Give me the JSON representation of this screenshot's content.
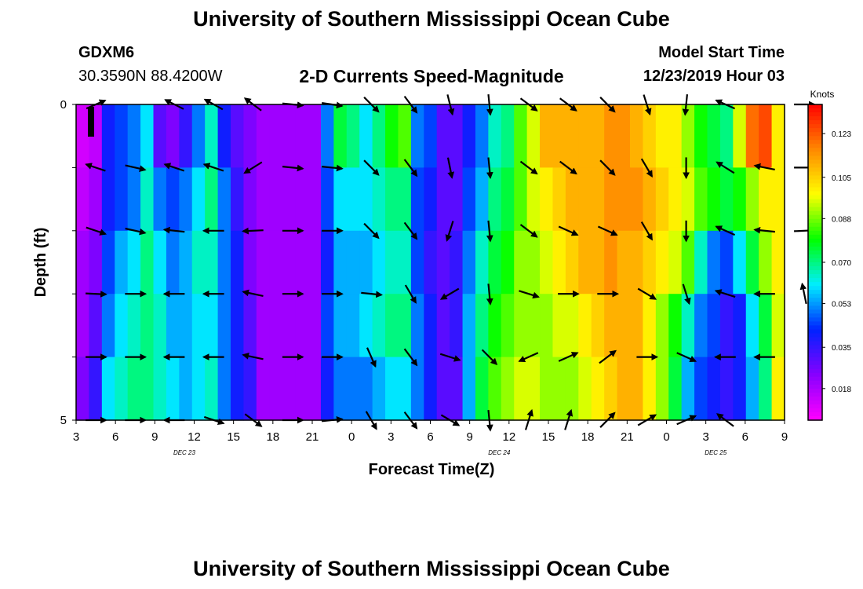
{
  "page": {
    "title_top": "University of Southern Mississippi Ocean Cube",
    "title_bottom": "University of Southern Mississippi Ocean Cube",
    "station": "GDXM6",
    "location": "30.3590N 88.4200W",
    "plot_title": "2-D Currents Speed-Magnitude",
    "model_label": "Model Start Time",
    "model_time": "12/23/2019 Hour 03"
  },
  "colors": {
    "stops": [
      "#ff00ff",
      "#8800ff",
      "#0022ff",
      "#00eeff",
      "#00ff00",
      "#ffff00",
      "#ff8800",
      "#ff0000"
    ],
    "arrow": "#000000",
    "frame": "#000000"
  },
  "chart_data": {
    "type": "heatmap",
    "xlabel": "Forecast Time(Z)",
    "ylabel": "Depth (ft)",
    "x_ticks": [
      "3",
      "6",
      "9",
      "12",
      "15",
      "18",
      "21",
      "0",
      "3",
      "6",
      "9",
      "12",
      "15",
      "18",
      "21",
      "0",
      "3",
      "6",
      "9"
    ],
    "date_labels": [
      "DEC 23",
      "DEC 24",
      "DEC 25"
    ],
    "y_ticks": [
      "0",
      "",
      "",
      "",
      "",
      "5"
    ],
    "y_range": [
      0,
      5
    ],
    "colorbar": {
      "unit": "Knots",
      "ticks": [
        "0.123",
        "0.105",
        "0.088",
        "0.070",
        "0.053",
        "0.035",
        "0.018"
      ],
      "range": [
        0.005,
        0.135
      ]
    },
    "depth_levels": 5,
    "time_steps": 55,
    "speed_grid": [
      [
        0.012,
        0.015,
        0.04,
        0.045,
        0.05,
        0.06,
        0.03,
        0.025,
        0.035,
        0.05,
        0.065,
        0.04,
        0.03,
        0.025,
        0.02,
        0.02,
        0.02,
        0.02,
        0.02,
        0.05,
        0.075,
        0.07,
        0.06,
        0.07,
        0.08,
        0.085,
        0.05,
        0.045,
        0.03,
        0.03,
        0.04,
        0.05,
        0.065,
        0.07,
        0.085,
        0.095,
        0.11,
        0.11,
        0.11,
        0.11,
        0.11,
        0.115,
        0.115,
        0.11,
        0.105,
        0.1,
        0.1,
        0.09,
        0.08,
        0.075,
        0.07,
        0.095,
        0.12,
        0.125,
        0.1
      ],
      [
        0.015,
        0.02,
        0.04,
        0.045,
        0.05,
        0.065,
        0.05,
        0.045,
        0.05,
        0.06,
        0.07,
        0.05,
        0.035,
        0.025,
        0.02,
        0.02,
        0.02,
        0.02,
        0.02,
        0.045,
        0.06,
        0.06,
        0.06,
        0.065,
        0.07,
        0.07,
        0.045,
        0.04,
        0.03,
        0.03,
        0.045,
        0.055,
        0.07,
        0.075,
        0.085,
        0.095,
        0.1,
        0.105,
        0.11,
        0.11,
        0.11,
        0.115,
        0.115,
        0.115,
        0.11,
        0.105,
        0.1,
        0.095,
        0.085,
        0.08,
        0.075,
        0.08,
        0.09,
        0.1,
        0.1
      ],
      [
        0.02,
        0.025,
        0.045,
        0.055,
        0.06,
        0.07,
        0.06,
        0.05,
        0.055,
        0.065,
        0.065,
        0.05,
        0.04,
        0.025,
        0.02,
        0.02,
        0.02,
        0.02,
        0.02,
        0.04,
        0.055,
        0.055,
        0.055,
        0.06,
        0.065,
        0.065,
        0.045,
        0.035,
        0.03,
        0.035,
        0.05,
        0.065,
        0.075,
        0.08,
        0.09,
        0.09,
        0.095,
        0.1,
        0.105,
        0.11,
        0.11,
        0.115,
        0.11,
        0.11,
        0.105,
        0.1,
        0.095,
        0.085,
        0.065,
        0.05,
        0.045,
        0.06,
        0.075,
        0.09,
        0.1
      ],
      [
        0.02,
        0.03,
        0.05,
        0.06,
        0.065,
        0.07,
        0.065,
        0.055,
        0.055,
        0.06,
        0.06,
        0.05,
        0.04,
        0.03,
        0.02,
        0.02,
        0.02,
        0.02,
        0.02,
        0.045,
        0.055,
        0.055,
        0.06,
        0.065,
        0.07,
        0.07,
        0.05,
        0.04,
        0.03,
        0.035,
        0.055,
        0.07,
        0.08,
        0.085,
        0.09,
        0.09,
        0.09,
        0.095,
        0.095,
        0.1,
        0.105,
        0.11,
        0.11,
        0.11,
        0.1,
        0.09,
        0.08,
        0.065,
        0.05,
        0.045,
        0.035,
        0.04,
        0.06,
        0.075,
        0.095
      ],
      [
        0.025,
        0.035,
        0.06,
        0.065,
        0.07,
        0.07,
        0.065,
        0.06,
        0.055,
        0.06,
        0.065,
        0.05,
        0.04,
        0.035,
        0.02,
        0.02,
        0.02,
        0.02,
        0.02,
        0.04,
        0.05,
        0.05,
        0.05,
        0.055,
        0.06,
        0.06,
        0.05,
        0.04,
        0.03,
        0.03,
        0.055,
        0.075,
        0.085,
        0.09,
        0.095,
        0.095,
        0.09,
        0.09,
        0.09,
        0.095,
        0.1,
        0.105,
        0.11,
        0.11,
        0.1,
        0.09,
        0.075,
        0.055,
        0.045,
        0.04,
        0.035,
        0.04,
        0.055,
        0.07,
        0.1
      ]
    ],
    "arrows": [
      {
        "t": "3",
        "row": 0,
        "u": 0.35,
        "v": -0.15
      },
      {
        "t": "9",
        "row": 0,
        "u": -0.8,
        "v": -0.4
      },
      {
        "t": "12",
        "row": 0,
        "u": -0.9,
        "v": -0.5
      },
      {
        "t": "15",
        "row": 0,
        "u": -0.8,
        "v": -0.6
      },
      {
        "t": "18",
        "row": 0,
        "u": 1,
        "v": 0.1
      },
      {
        "t": "21",
        "row": 0,
        "u": 1,
        "v": 0.15
      },
      {
        "t": "0",
        "row": 0,
        "u": 0.7,
        "v": 0.7
      },
      {
        "t": "3",
        "row": 0,
        "u": 0.6,
        "v": 0.8
      },
      {
        "t": "6",
        "row": 0,
        "u": 0.25,
        "v": 1
      },
      {
        "t": "9",
        "row": 0,
        "u": 0.1,
        "v": 1
      },
      {
        "t": "12",
        "row": 0,
        "u": 0.8,
        "v": 0.6
      },
      {
        "t": "15",
        "row": 0,
        "u": 0.8,
        "v": 0.6
      },
      {
        "t": "18",
        "row": 0,
        "u": 0.7,
        "v": 0.7
      },
      {
        "t": "21",
        "row": 0,
        "u": 0.3,
        "v": 0.95
      },
      {
        "t": "0",
        "row": 0,
        "u": -0.1,
        "v": 1
      },
      {
        "t": "3",
        "row": 0,
        "u": -0.9,
        "v": -0.4
      },
      {
        "t": "9",
        "row": 0,
        "u": 1,
        "v": 0
      },
      {
        "t": "3",
        "row": 1,
        "u": -0.9,
        "v": -0.3
      },
      {
        "t": "6",
        "row": 1,
        "u": 0.9,
        "v": 0.2
      },
      {
        "t": "9",
        "row": 1,
        "u": -0.9,
        "v": -0.3
      },
      {
        "t": "12",
        "row": 1,
        "u": -0.9,
        "v": -0.3
      },
      {
        "t": "15",
        "row": 1,
        "u": -0.8,
        "v": 0.5
      },
      {
        "t": "18",
        "row": 1,
        "u": 1,
        "v": 0.1
      },
      {
        "t": "21",
        "row": 1,
        "u": 1,
        "v": 0.1
      },
      {
        "t": "0",
        "row": 1,
        "u": 0.7,
        "v": 0.7
      },
      {
        "t": "3",
        "row": 1,
        "u": 0.6,
        "v": 0.8
      },
      {
        "t": "6",
        "row": 1,
        "u": 0.2,
        "v": 1
      },
      {
        "t": "9",
        "row": 1,
        "u": 0.1,
        "v": 1
      },
      {
        "t": "12",
        "row": 1,
        "u": 0.8,
        "v": 0.6
      },
      {
        "t": "15",
        "row": 1,
        "u": 0.8,
        "v": 0.6
      },
      {
        "t": "18",
        "row": 1,
        "u": 0.7,
        "v": 0.7
      },
      {
        "t": "21",
        "row": 1,
        "u": 0.5,
        "v": 0.85
      },
      {
        "t": "0",
        "row": 1,
        "u": 0,
        "v": 1
      },
      {
        "t": "3",
        "row": 1,
        "u": -0.8,
        "v": -0.5
      },
      {
        "t": "6",
        "row": 1,
        "u": -1,
        "v": -0.2
      },
      {
        "t": "9",
        "row": 1,
        "u": 1,
        "v": 0
      },
      {
        "t": "3",
        "row": 2,
        "u": 0.9,
        "v": 0.3
      },
      {
        "t": "6",
        "row": 2,
        "u": 0.9,
        "v": 0.2
      },
      {
        "t": "9",
        "row": 2,
        "u": -0.9,
        "v": -0.1
      },
      {
        "t": "12",
        "row": 2,
        "u": -1,
        "v": 0
      },
      {
        "t": "15",
        "row": 2,
        "u": -1,
        "v": 0.05
      },
      {
        "t": "18",
        "row": 2,
        "u": 1,
        "v": 0
      },
      {
        "t": "21",
        "row": 2,
        "u": 1,
        "v": 0
      },
      {
        "t": "0",
        "row": 2,
        "u": 0.7,
        "v": 0.7
      },
      {
        "t": "3",
        "row": 2,
        "u": 0.6,
        "v": 0.8
      },
      {
        "t": "6",
        "row": 2,
        "u": -0.3,
        "v": 0.95
      },
      {
        "t": "9",
        "row": 2,
        "u": 0.1,
        "v": 1
      },
      {
        "t": "12",
        "row": 2,
        "u": 0.8,
        "v": 0.6
      },
      {
        "t": "15",
        "row": 2,
        "u": 0.9,
        "v": 0.4
      },
      {
        "t": "18",
        "row": 2,
        "u": 0.9,
        "v": 0.4
      },
      {
        "t": "21",
        "row": 2,
        "u": 0.5,
        "v": 0.85
      },
      {
        "t": "0",
        "row": 2,
        "u": 0,
        "v": 1
      },
      {
        "t": "3",
        "row": 2,
        "u": -0.9,
        "v": -0.4
      },
      {
        "t": "6",
        "row": 2,
        "u": -1,
        "v": -0.1
      },
      {
        "t": "9",
        "row": 2,
        "u": 1,
        "v": -0.05
      },
      {
        "t": "3",
        "row": 3,
        "u": 1,
        "v": 0.05
      },
      {
        "t": "6",
        "row": 3,
        "u": 1,
        "v": 0
      },
      {
        "t": "9",
        "row": 3,
        "u": -1,
        "v": 0
      },
      {
        "t": "12",
        "row": 3,
        "u": -1,
        "v": 0
      },
      {
        "t": "15",
        "row": 3,
        "u": -0.95,
        "v": -0.2
      },
      {
        "t": "18",
        "row": 3,
        "u": 1,
        "v": 0
      },
      {
        "t": "21",
        "row": 3,
        "u": 1,
        "v": 0
      },
      {
        "t": "0",
        "row": 3,
        "u": 1,
        "v": 0.1
      },
      {
        "t": "3",
        "row": 3,
        "u": 0.5,
        "v": 0.85
      },
      {
        "t": "6",
        "row": 3,
        "u": -0.85,
        "v": 0.5
      },
      {
        "t": "9",
        "row": 3,
        "u": 0.1,
        "v": 1
      },
      {
        "t": "12",
        "row": 3,
        "u": 0.95,
        "v": 0.3
      },
      {
        "t": "15",
        "row": 3,
        "u": 1,
        "v": 0
      },
      {
        "t": "18",
        "row": 3,
        "u": 1,
        "v": 0
      },
      {
        "t": "21",
        "row": 3,
        "u": 0.85,
        "v": 0.5
      },
      {
        "t": "0",
        "row": 3,
        "u": 0.3,
        "v": 0.95
      },
      {
        "t": "3",
        "row": 3,
        "u": -0.95,
        "v": -0.3
      },
      {
        "t": "6",
        "row": 3,
        "u": -1,
        "v": 0
      },
      {
        "t": "9",
        "row": 3,
        "u": -0.2,
        "v": -0.98
      },
      {
        "t": "3",
        "row": 4,
        "u": 1,
        "v": 0
      },
      {
        "t": "6",
        "row": 4,
        "u": 1,
        "v": 0
      },
      {
        "t": "9",
        "row": 4,
        "u": -1,
        "v": 0
      },
      {
        "t": "12",
        "row": 4,
        "u": -1,
        "v": 0
      },
      {
        "t": "15",
        "row": 4,
        "u": -0.95,
        "v": -0.2
      },
      {
        "t": "18",
        "row": 4,
        "u": 1,
        "v": 0
      },
      {
        "t": "21",
        "row": 4,
        "u": 1,
        "v": 0
      },
      {
        "t": "0",
        "row": 4,
        "u": 0.4,
        "v": 0.9
      },
      {
        "t": "3",
        "row": 4,
        "u": 0.6,
        "v": 0.8
      },
      {
        "t": "6",
        "row": 4,
        "u": 0.95,
        "v": 0.3
      },
      {
        "t": "9",
        "row": 4,
        "u": 0.7,
        "v": 0.7
      },
      {
        "t": "12",
        "row": 4,
        "u": -0.9,
        "v": 0.4
      },
      {
        "t": "15",
        "row": 4,
        "u": 0.9,
        "v": -0.4
      },
      {
        "t": "18",
        "row": 4,
        "u": 0.8,
        "v": -0.6
      },
      {
        "t": "21",
        "row": 4,
        "u": 1,
        "v": 0
      },
      {
        "t": "0",
        "row": 4,
        "u": 0.9,
        "v": 0.4
      },
      {
        "t": "3",
        "row": 4,
        "u": -1,
        "v": 0
      },
      {
        "t": "6",
        "row": 4,
        "u": -1,
        "v": 0
      },
      {
        "t": "3",
        "row": 5,
        "u": 1,
        "v": 0
      },
      {
        "t": "6",
        "row": 5,
        "u": 1,
        "v": 0
      },
      {
        "t": "9",
        "row": 5,
        "u": -1,
        "v": 0
      },
      {
        "t": "12",
        "row": 5,
        "u": 0.9,
        "v": 0.3
      },
      {
        "t": "15",
        "row": 5,
        "u": 0.8,
        "v": 0.6
      },
      {
        "t": "18",
        "row": 5,
        "u": 1,
        "v": 0
      },
      {
        "t": "21",
        "row": 5,
        "u": 1,
        "v": -0.1
      },
      {
        "t": "0",
        "row": 5,
        "u": 0.5,
        "v": 0.85
      },
      {
        "t": "3",
        "row": 5,
        "u": 0.6,
        "v": 0.8
      },
      {
        "t": "6",
        "row": 5,
        "u": 0.85,
        "v": 0.5
      },
      {
        "t": "9",
        "row": 5,
        "u": 0.1,
        "v": 1
      },
      {
        "t": "12",
        "row": 5,
        "u": 0.3,
        "v": -0.95
      },
      {
        "t": "15",
        "row": 5,
        "u": 0.3,
        "v": -0.95
      },
      {
        "t": "18",
        "row": 5,
        "u": 0.7,
        "v": -0.7
      },
      {
        "t": "21",
        "row": 5,
        "u": 0.85,
        "v": -0.5
      },
      {
        "t": "0",
        "row": 5,
        "u": 0.9,
        "v": -0.4
      },
      {
        "t": "3",
        "row": 5,
        "u": -0.8,
        "v": -0.6
      }
    ]
  }
}
